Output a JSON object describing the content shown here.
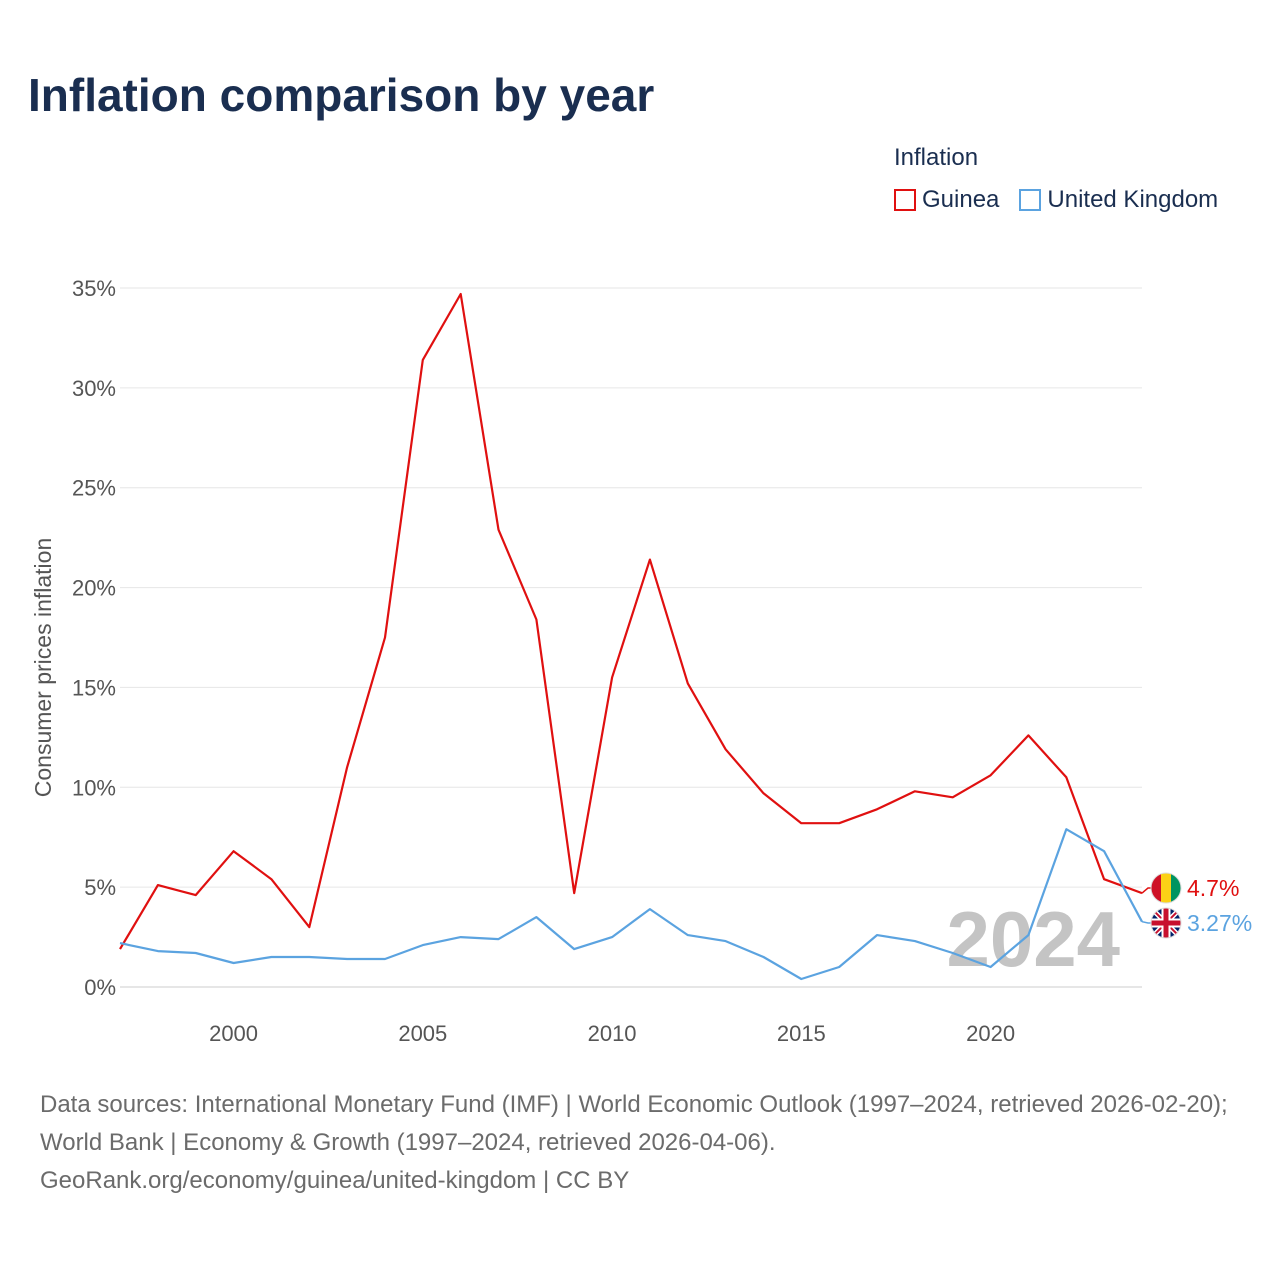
{
  "title": "Inflation comparison by year",
  "legend": {
    "title": "Inflation",
    "items": [
      {
        "label": "Guinea",
        "color": "#e01010"
      },
      {
        "label": "United Kingdom",
        "color": "#5ba3e0"
      }
    ]
  },
  "chart_data": {
    "type": "line",
    "title": "Inflation comparison by year",
    "xlabel": "",
    "ylabel": "Consumer prices inflation",
    "xlim": [
      1997,
      2024
    ],
    "ylim": [
      0,
      35
    ],
    "yticks": [
      0,
      5,
      10,
      15,
      20,
      25,
      30,
      35
    ],
    "ytick_labels": [
      "0%",
      "5%",
      "10%",
      "15%",
      "20%",
      "25%",
      "30%",
      "35%"
    ],
    "xticks": [
      2000,
      2005,
      2010,
      2015,
      2020
    ],
    "xtick_labels": [
      "2000",
      "2005",
      "2010",
      "2015",
      "2020"
    ],
    "grid": true,
    "year_watermark": "2024",
    "x": [
      1997,
      1998,
      1999,
      2000,
      2001,
      2002,
      2003,
      2004,
      2005,
      2006,
      2007,
      2008,
      2009,
      2010,
      2011,
      2012,
      2013,
      2014,
      2015,
      2016,
      2017,
      2018,
      2019,
      2020,
      2021,
      2022,
      2023,
      2024
    ],
    "series": [
      {
        "name": "Guinea",
        "color": "#e01010",
        "end_label": "4.7%",
        "flag": "guinea-flag",
        "values": [
          1.9,
          5.1,
          4.6,
          6.8,
          5.4,
          3.0,
          11.0,
          17.5,
          31.4,
          34.7,
          22.9,
          18.4,
          4.7,
          15.5,
          21.4,
          15.2,
          11.9,
          9.7,
          8.2,
          8.2,
          8.9,
          9.8,
          9.5,
          10.6,
          12.6,
          10.5,
          5.4,
          4.7
        ]
      },
      {
        "name": "United Kingdom",
        "color": "#5ba3e0",
        "end_label": "3.27%",
        "flag": "uk-flag",
        "values": [
          2.2,
          1.8,
          1.7,
          1.2,
          1.5,
          1.5,
          1.4,
          1.4,
          2.1,
          2.5,
          2.4,
          3.5,
          1.9,
          2.5,
          3.9,
          2.6,
          2.3,
          1.5,
          0.4,
          1.0,
          2.6,
          2.3,
          1.7,
          1.0,
          2.6,
          7.9,
          6.8,
          3.27
        ]
      }
    ]
  },
  "footer": {
    "sources": "Data sources: International Monetary Fund (IMF) | World Economic Outlook (1997–2024, retrieved 2026-02-20); World Bank | Economy & Growth (1997–2024, retrieved 2026-04-06).",
    "attribution": "GeoRank.org/economy/guinea/united-kingdom | CC BY"
  }
}
